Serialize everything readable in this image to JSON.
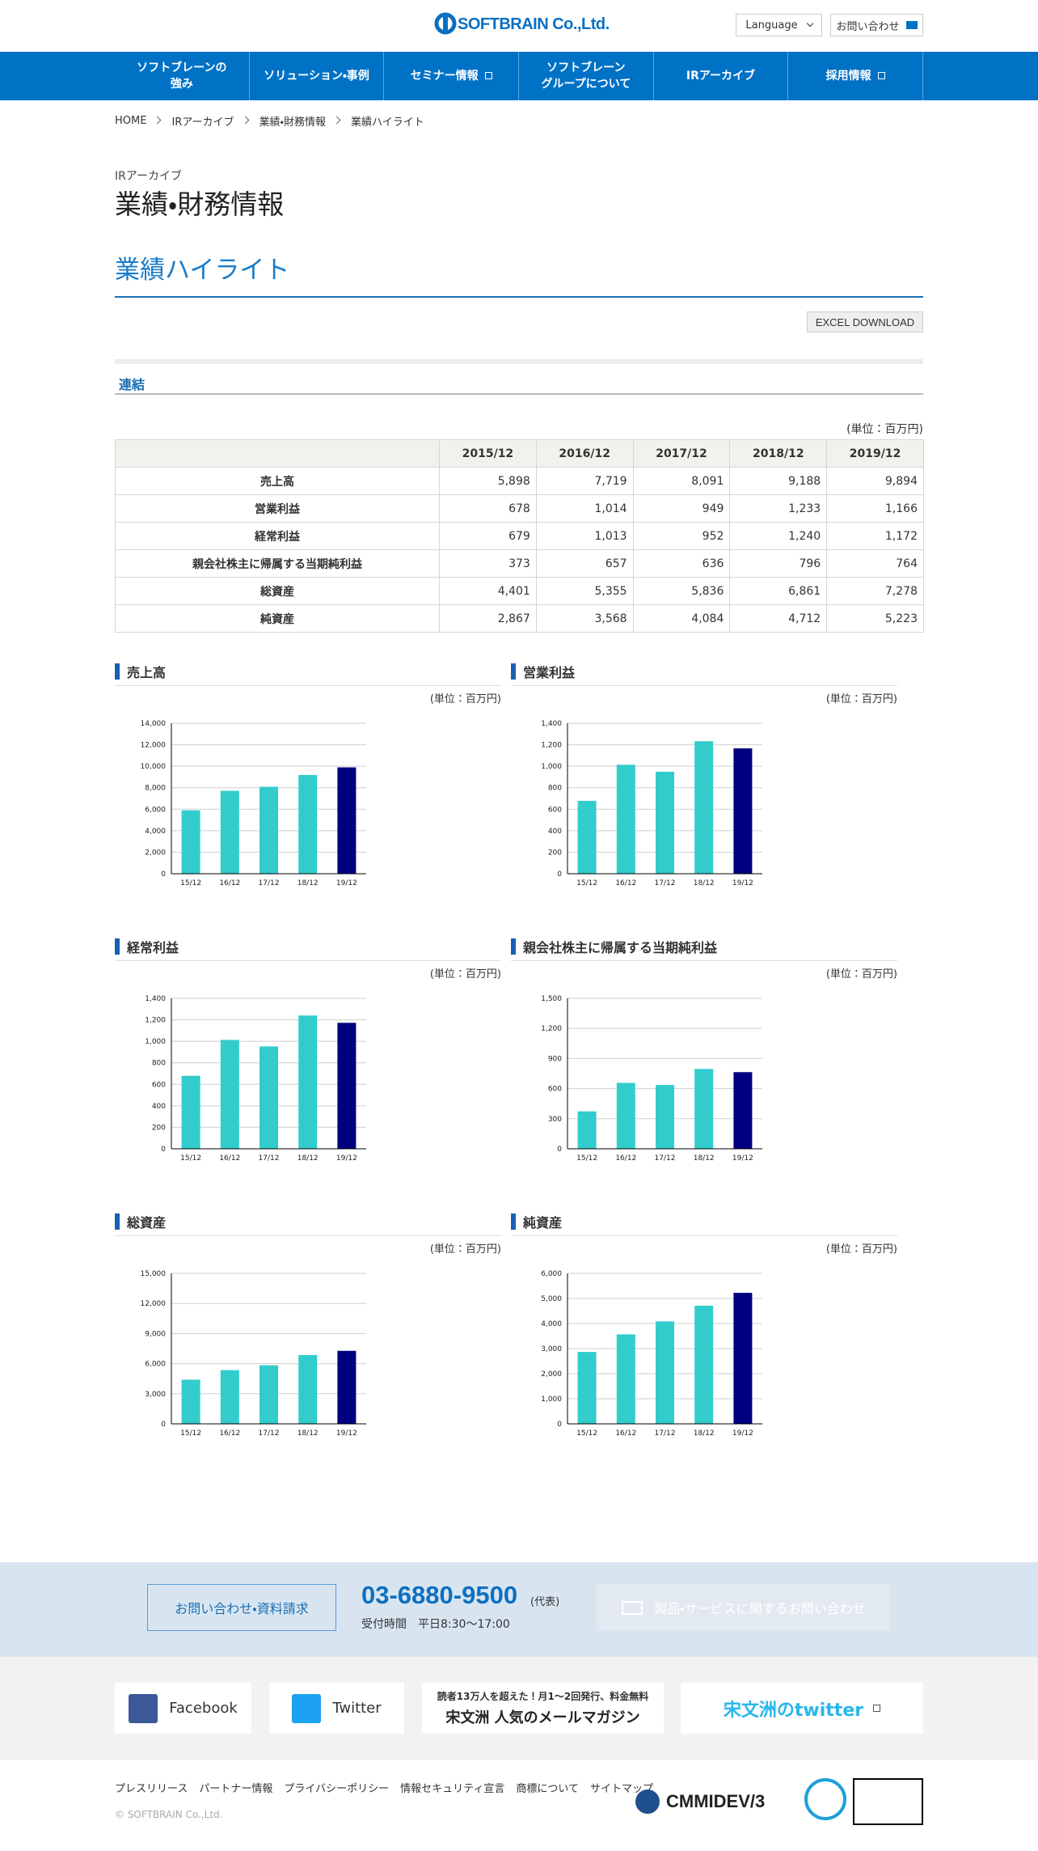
{
  "header": {
    "logo": "SOFTBRAIN Co.,Ltd.",
    "language": "Language",
    "contact": "お問い合わせ"
  },
  "nav": [
    [
      "ソフトブレーンの",
      "強み"
    ],
    [
      "ソリューション・事例"
    ],
    [
      "セミナー情報"
    ],
    [
      "ソフトブレーン",
      "グループについて"
    ],
    [
      "IRアーカイブ"
    ],
    [
      "採用情報"
    ]
  ],
  "breadcrumb": [
    "HOME",
    "IRアーカイブ",
    "業績・財務情報",
    "業績ハイライト"
  ],
  "page": {
    "category": "IRアーカイブ",
    "title": "業績・財務情報",
    "section": "業績ハイライト",
    "excel": "EXCEL DOWNLOAD",
    "tab": "連結"
  },
  "table": {
    "unit": "(単位：百万円)",
    "header": [
      "2015/12",
      "2016/12",
      "2017/12",
      "2018/12",
      "2019/12"
    ],
    "rows": [
      [
        "売上高",
        "5,898",
        "7,719",
        "8,091",
        "9,188",
        "9,894"
      ],
      [
        "営業利益",
        "678",
        "1,014",
        "949",
        "1,233",
        "1,166"
      ],
      [
        "経常利益",
        "679",
        "1,013",
        "952",
        "1,240",
        "1,172"
      ],
      [
        "親会社株主に帰属する当期純利益",
        "373",
        "657",
        "636",
        "796",
        "764"
      ],
      [
        "総資産",
        "4,401",
        "5,355",
        "5,836",
        "6,861",
        "7,278"
      ],
      [
        "純資産",
        "2,867",
        "3,568",
        "4,084",
        "4,712",
        "5,223"
      ]
    ]
  },
  "chart_data": [
    {
      "type": "bar",
      "title": "売上高",
      "unit_label": "(単位：百万円)",
      "categories": [
        "15/12",
        "16/12",
        "17/12",
        "18/12",
        "19/12"
      ],
      "values": [
        5898,
        7719,
        8091,
        9188,
        9894
      ],
      "colors": [
        "#33cccc",
        "#33cccc",
        "#33cccc",
        "#33cccc",
        "#000080"
      ],
      "ylim": [
        0,
        14000
      ],
      "yticks": [
        0,
        {
          "value": 2000,
          "label": "2,000"
        },
        {
          "value": 4000,
          "label": "4,000"
        },
        {
          "value": 6000,
          "label": "6,000"
        },
        {
          "value": 8000,
          "label": "8,000"
        },
        {
          "value": 10000,
          "label": "10,000"
        },
        {
          "value": 12000,
          "label": "12,000"
        },
        {
          "value": 14000,
          "label": "14,000"
        }
      ],
      "grid": true
    },
    {
      "type": "bar",
      "title": "営業利益",
      "unit_label": "(単位：百万円)",
      "categories": [
        "15/12",
        "16/12",
        "17/12",
        "18/12",
        "19/12"
      ],
      "values": [
        678,
        1014,
        949,
        1233,
        1166
      ],
      "colors": [
        "#33cccc",
        "#33cccc",
        "#33cccc",
        "#33cccc",
        "#000080"
      ],
      "ylim": [
        0,
        1400
      ],
      "yticks": [
        0,
        200,
        400,
        600,
        800,
        {
          "value": 1000,
          "label": "1,000"
        },
        {
          "value": 1200,
          "label": "1,200"
        },
        {
          "value": 1400,
          "label": "1,400"
        }
      ],
      "grid": true
    },
    {
      "type": "bar",
      "title": "経常利益",
      "unit_label": "(単位：百万円)",
      "categories": [
        "15/12",
        "16/12",
        "17/12",
        "18/12",
        "19/12"
      ],
      "values": [
        679,
        1013,
        952,
        1240,
        1172
      ],
      "colors": [
        "#33cccc",
        "#33cccc",
        "#33cccc",
        "#33cccc",
        "#000080"
      ],
      "ylim": [
        0,
        1400
      ],
      "yticks": [
        0,
        200,
        400,
        600,
        800,
        {
          "value": 1000,
          "label": "1,000"
        },
        {
          "value": 1200,
          "label": "1,200"
        },
        {
          "value": 1400,
          "label": "1,400"
        }
      ],
      "grid": true
    },
    {
      "type": "bar",
      "title": "親会社株主に帰属する当期純利益",
      "unit_label": "(単位：百万円)",
      "categories": [
        "15/12",
        "16/12",
        "17/12",
        "18/12",
        "19/12"
      ],
      "values": [
        373,
        657,
        636,
        796,
        764
      ],
      "colors": [
        "#33cccc",
        "#33cccc",
        "#33cccc",
        "#33cccc",
        "#000080"
      ],
      "ylim": [
        0,
        1500
      ],
      "yticks": [
        0,
        300,
        600,
        900,
        {
          "value": 1200,
          "label": "1,200"
        },
        {
          "value": 1500,
          "label": "1,500"
        }
      ],
      "grid": true
    },
    {
      "type": "bar",
      "title": "総資産",
      "unit_label": "(単位：百万円)",
      "categories": [
        "15/12",
        "16/12",
        "17/12",
        "18/12",
        "19/12"
      ],
      "values": [
        4401,
        5355,
        5836,
        6861,
        7278
      ],
      "colors": [
        "#33cccc",
        "#33cccc",
        "#33cccc",
        "#33cccc",
        "#000080"
      ],
      "ylim": [
        0,
        15000
      ],
      "yticks": [
        0,
        {
          "value": 3000,
          "label": "3,000"
        },
        {
          "value": 6000,
          "label": "6,000"
        },
        {
          "value": 9000,
          "label": "9,000"
        },
        {
          "value": 12000,
          "label": "12,000"
        },
        {
          "value": 15000,
          "label": "15,000"
        }
      ],
      "grid": true
    },
    {
      "type": "bar",
      "title": "純資産",
      "unit_label": "(単位：百万円)",
      "categories": [
        "15/12",
        "16/12",
        "17/12",
        "18/12",
        "19/12"
      ],
      "values": [
        2867,
        3568,
        4084,
        4712,
        5223
      ],
      "colors": [
        "#33cccc",
        "#33cccc",
        "#33cccc",
        "#33cccc",
        "#000080"
      ],
      "ylim": [
        0,
        6000
      ],
      "yticks": [
        0,
        {
          "value": 1000,
          "label": "1,000"
        },
        {
          "value": 2000,
          "label": "2,000"
        },
        {
          "value": 3000,
          "label": "3,000"
        },
        {
          "value": 4000,
          "label": "4,000"
        },
        {
          "value": 5000,
          "label": "5,000"
        },
        {
          "value": 6000,
          "label": "6,000"
        }
      ],
      "grid": true
    }
  ],
  "footer": {
    "contact_button": "お問い合わせ・資料請求",
    "phone": "03-6880-9500",
    "phone_note": "(代表)",
    "hours": "受付時間　平日8:30～17:00",
    "product_inquiry": "製品・サービスに関するお問い合わせ",
    "facebook": "Facebook",
    "twitter": "Twitter",
    "magazine_lead": "読者13万人を超えた！月1～2回発行、料金無料",
    "magazine_title": "宋文洲 人気のメールマガジン",
    "song_twitter": "宋文洲のtwitter",
    "links": [
      "プレスリリース",
      "パートナー情報",
      "プライバシーポリシー",
      "情報セキュリティ宣言",
      "商標について",
      "サイトマップ"
    ],
    "copyright": "© SOFTBRAIN Co.,Ltd.",
    "cmmi": "CMMIDEV/3"
  }
}
